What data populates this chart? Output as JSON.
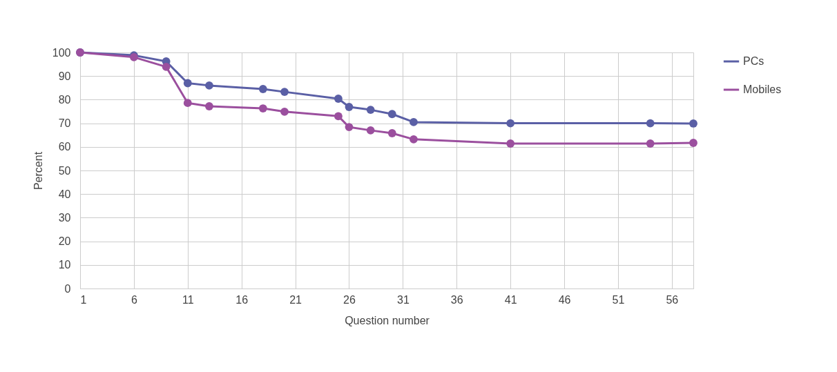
{
  "chart_data": {
    "type": "line",
    "xlabel": "Question number",
    "ylabel": "Percent",
    "x": [
      1,
      6,
      9,
      11,
      13,
      18,
      20,
      25,
      26,
      28,
      30,
      32,
      41,
      54,
      58
    ],
    "series": [
      {
        "name": "PCs",
        "color": "#5a5fa5",
        "values": [
          100,
          98.8,
          96.2,
          87,
          86,
          84.5,
          83.3,
          80.4,
          76.9,
          75.7,
          73.9,
          70.5,
          70,
          70,
          69.9
        ]
      },
      {
        "name": "Mobiles",
        "color": "#9b4f9e",
        "values": [
          100,
          98,
          93.9,
          78.6,
          77.2,
          76.3,
          74.9,
          73,
          68.4,
          67,
          65.8,
          63.2,
          61.4,
          61.4,
          61.7
        ]
      }
    ],
    "xlim": [
      1,
      58
    ],
    "xticks": [
      1,
      6,
      11,
      16,
      21,
      26,
      31,
      36,
      41,
      46,
      51,
      56
    ],
    "ylim": [
      0,
      100
    ],
    "yticks": [
      0,
      10,
      20,
      30,
      40,
      50,
      60,
      70,
      80,
      90,
      100
    ],
    "grid": true,
    "legend": "right",
    "marker": "circle",
    "line_style": "solid"
  }
}
